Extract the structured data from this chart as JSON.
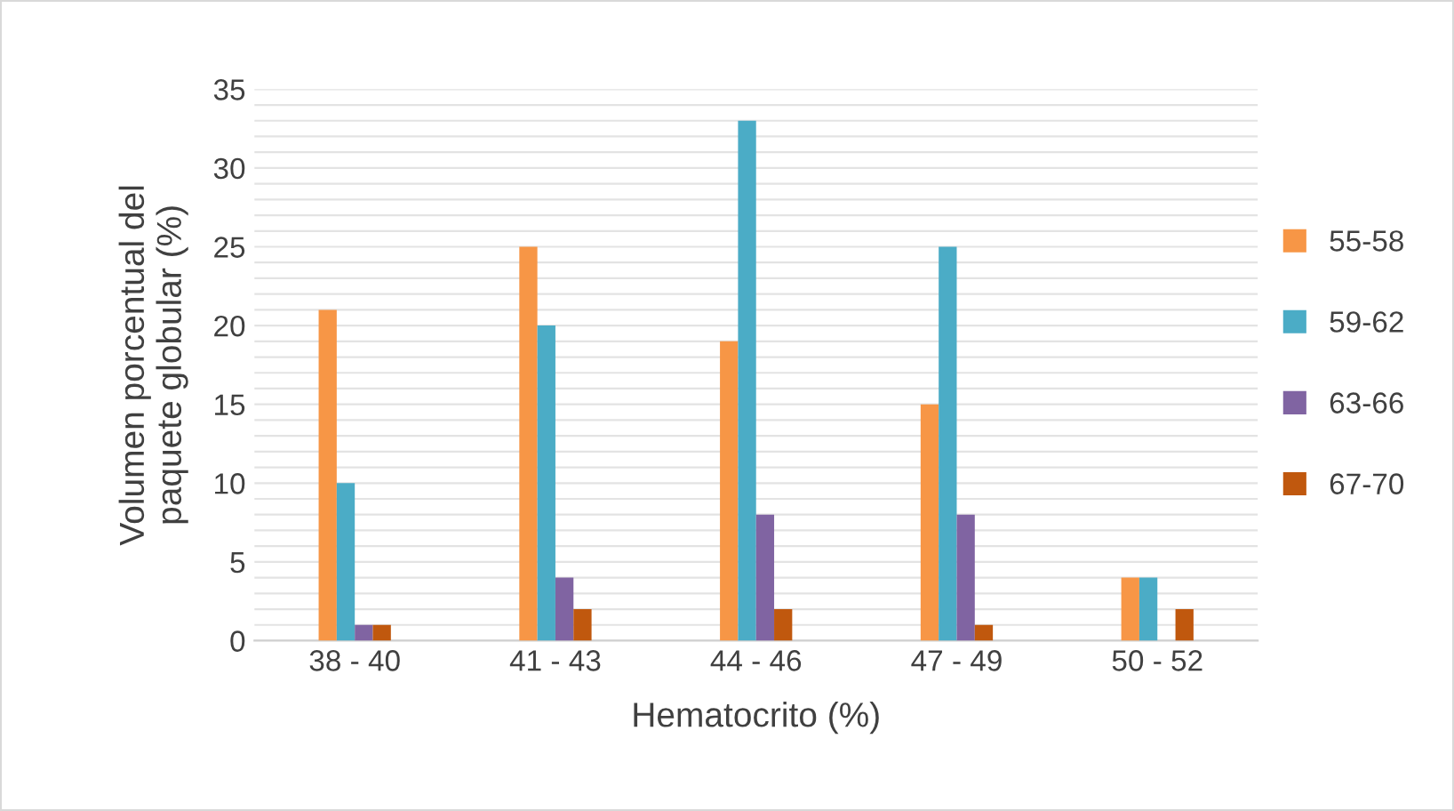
{
  "chart_data": {
    "type": "bar",
    "xlabel": "Hematocrito (%)",
    "ylabel": "Volumen porcentual del\npaquete globular (%)",
    "categories": [
      "38 - 40",
      "41 - 43",
      "44 - 46",
      "47 - 49",
      "50 - 52"
    ],
    "series": [
      {
        "name": "55-58",
        "color": "#f79646",
        "values": [
          21,
          25,
          19,
          15,
          4
        ]
      },
      {
        "name": "59-62",
        "color": "#4bacc6",
        "values": [
          10,
          20,
          33,
          25,
          4
        ]
      },
      {
        "name": "63-66",
        "color": "#8064a2",
        "values": [
          1,
          4,
          8,
          8,
          0
        ]
      },
      {
        "name": "67-70",
        "color": "#c0580e",
        "values": [
          1,
          2,
          2,
          1,
          2
        ]
      }
    ],
    "ylim": [
      0,
      35
    ],
    "yticks": [
      0,
      {
        "value": 1,
        "label": null
      },
      {
        "value": 2,
        "label": null
      },
      {
        "value": 3,
        "label": null
      },
      {
        "value": 4,
        "label": null
      },
      5,
      {
        "value": 6,
        "label": null
      },
      {
        "value": 7,
        "label": null
      },
      {
        "value": 8,
        "label": null
      },
      {
        "value": 9,
        "label": null
      },
      10,
      {
        "value": 11,
        "label": null
      },
      {
        "value": 12,
        "label": null
      },
      {
        "value": 13,
        "label": null
      },
      {
        "value": 14,
        "label": null
      },
      15,
      {
        "value": 16,
        "label": null
      },
      {
        "value": 17,
        "label": null
      },
      {
        "value": 18,
        "label": null
      },
      {
        "value": 19,
        "label": null
      },
      20,
      {
        "value": 21,
        "label": null
      },
      {
        "value": 22,
        "label": null
      },
      {
        "value": 23,
        "label": null
      },
      {
        "value": 24,
        "label": null
      },
      25,
      {
        "value": 26,
        "label": null
      },
      {
        "value": 27,
        "label": null
      },
      {
        "value": 28,
        "label": null
      },
      {
        "value": 29,
        "label": null
      },
      30,
      {
        "value": 31,
        "label": null
      },
      {
        "value": 32,
        "label": null
      },
      {
        "value": 33,
        "label": null
      },
      {
        "value": 34,
        "label": null
      },
      35
    ],
    "grid": "y",
    "legend": "right"
  }
}
